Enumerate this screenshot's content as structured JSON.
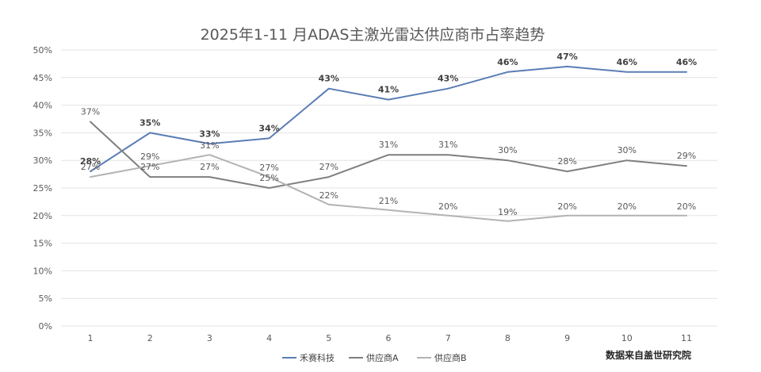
{
  "chart_data": {
    "type": "line",
    "title": "2025年1-11 月ADAS主激光雷达供应商市占率趋势",
    "categories": [
      "1",
      "2",
      "3",
      "4",
      "5",
      "6",
      "7",
      "8",
      "9",
      "10",
      "11"
    ],
    "y_ticks": [
      "0%",
      "5%",
      "10%",
      "15%",
      "20%",
      "25%",
      "30%",
      "35%",
      "40%",
      "45%",
      "50%"
    ],
    "ylim": [
      0,
      50
    ],
    "y_unit": "%",
    "grid": true,
    "legend_position": "bottom",
    "series": [
      {
        "name": "禾赛科技",
        "color": "#5b7db5",
        "values": [
          28,
          35,
          33,
          34,
          43,
          41,
          43,
          46,
          47,
          46,
          46
        ],
        "labels": [
          "28%",
          "35%",
          "33%",
          "34%",
          "43%",
          "41%",
          "43%",
          "46%",
          "47%",
          "46%",
          "46%"
        ]
      },
      {
        "name": "供应商A",
        "color": "#7f7f7f",
        "values": [
          37,
          27,
          27,
          25,
          27,
          31,
          31,
          30,
          28,
          30,
          29
        ],
        "labels": [
          "37%",
          "27%",
          "27%",
          "25%",
          "27%",
          "31%",
          "31%",
          "30%",
          "28%",
          "30%",
          "29%"
        ]
      },
      {
        "name": "供应商B",
        "color": "#b3b3b3",
        "values": [
          27,
          29,
          31,
          27,
          22,
          21,
          20,
          19,
          20,
          20,
          20
        ],
        "labels": [
          "27%",
          "29%",
          "31%",
          "27%",
          "22%",
          "21%",
          "20%",
          "19%",
          "20%",
          "20%",
          "20%"
        ]
      }
    ],
    "source_note": "数据来自盖世研究院"
  }
}
